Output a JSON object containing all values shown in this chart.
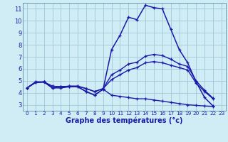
{
  "title": "Graphe des températures (°c)",
  "background_color": "#d0ecf4",
  "grid_color": "#a0c8d8",
  "line_color": "#1a1aaa",
  "x_hours": [
    0,
    1,
    2,
    3,
    4,
    5,
    6,
    7,
    8,
    9,
    10,
    11,
    12,
    13,
    14,
    15,
    16,
    17,
    18,
    19,
    20,
    21,
    22,
    23
  ],
  "y1": [
    4.4,
    4.9,
    4.9,
    4.4,
    4.5,
    4.5,
    4.5,
    4.1,
    3.8,
    4.3,
    7.6,
    8.8,
    10.3,
    10.1,
    11.3,
    11.1,
    11.0,
    9.3,
    7.6,
    6.5,
    4.9,
    3.6,
    2.9,
    null
  ],
  "y2": [
    4.4,
    4.85,
    4.9,
    4.55,
    4.5,
    4.55,
    4.55,
    4.35,
    4.1,
    4.35,
    5.5,
    5.9,
    6.4,
    6.55,
    7.05,
    7.2,
    7.1,
    6.8,
    6.4,
    6.2,
    5.0,
    4.2,
    3.55,
    null
  ],
  "y3": [
    4.4,
    4.85,
    4.9,
    4.55,
    4.5,
    4.55,
    4.55,
    4.35,
    4.1,
    4.35,
    5.1,
    5.5,
    5.9,
    6.1,
    6.5,
    6.6,
    6.5,
    6.3,
    6.1,
    5.9,
    4.8,
    4.1,
    3.5,
    null
  ],
  "y4": [
    4.4,
    4.9,
    4.9,
    4.4,
    4.4,
    4.5,
    4.5,
    4.1,
    3.8,
    4.3,
    3.8,
    3.7,
    3.6,
    3.5,
    3.5,
    3.4,
    3.3,
    3.2,
    3.1,
    3.0,
    2.95,
    2.9,
    2.85,
    null
  ],
  "ylim": [
    2.5,
    11.5
  ],
  "yticks": [
    3,
    4,
    5,
    6,
    7,
    8,
    9,
    10,
    11
  ]
}
